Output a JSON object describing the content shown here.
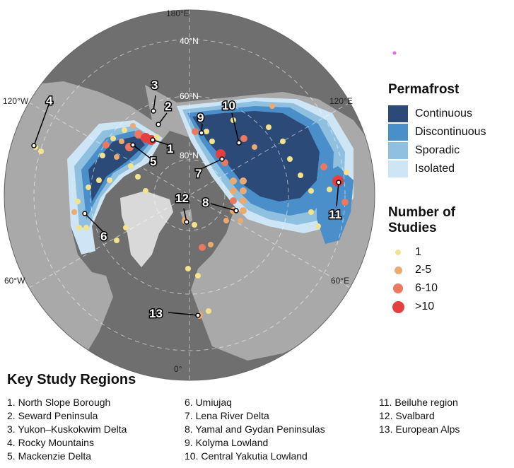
{
  "longitude_labels": {
    "top": "180°E",
    "left": "120°W",
    "right": "120°E",
    "lower_left": "60°W",
    "lower_right": "60°E",
    "bottom": "0°"
  },
  "latitude_labels": [
    "40°N",
    "60°N",
    "80°N"
  ],
  "legend_permafrost": {
    "title": "Permafrost",
    "items": [
      {
        "label": "Continuous",
        "color": "#2c4a78"
      },
      {
        "label": "Discontinuous",
        "color": "#4a8fca"
      },
      {
        "label": "Sporadic",
        "color": "#8fc0e0"
      },
      {
        "label": "Isolated",
        "color": "#cde5f4"
      }
    ]
  },
  "legend_studies": {
    "title_line1": "Number of",
    "title_line2": "Studies",
    "items": [
      {
        "label": "1",
        "color": "#f2e38c"
      },
      {
        "label": "2-5",
        "color": "#eaaa70"
      },
      {
        "label": "6-10",
        "color": "#ec7860"
      },
      {
        "label": ">10",
        "color": "#e63f3f"
      }
    ]
  },
  "callouts": [
    "1",
    "2",
    "3",
    "4",
    "5",
    "6",
    "7",
    "8",
    "9",
    "10",
    "11",
    "12",
    "13"
  ],
  "key_regions": {
    "title": "Key Study Regions",
    "items": [
      "1. North Slope Borough",
      "2. Seward Peninsula",
      "3. Yukon–Kuskokwim Delta",
      "4. Rocky Mountains",
      "5. Mackenzie Delta",
      "6. Umiujaq",
      "7. Lena River Delta",
      "8. Yamal and Gydan Peninsulas",
      "9. Kolyma Lowland",
      "10. Central Yakutia Lowland",
      "11. Beiluhe region",
      "12. Svalbard",
      "13. European Alps"
    ]
  },
  "colors": {
    "ocean": "#6f6f6f",
    "land": "#a9a9a9",
    "continuous": "#2c4a78",
    "discontinuous": "#4a8fca",
    "sporadic": "#8fc0e0",
    "isolated": "#cde5f4",
    "stray_marker": "#ee66ee"
  }
}
